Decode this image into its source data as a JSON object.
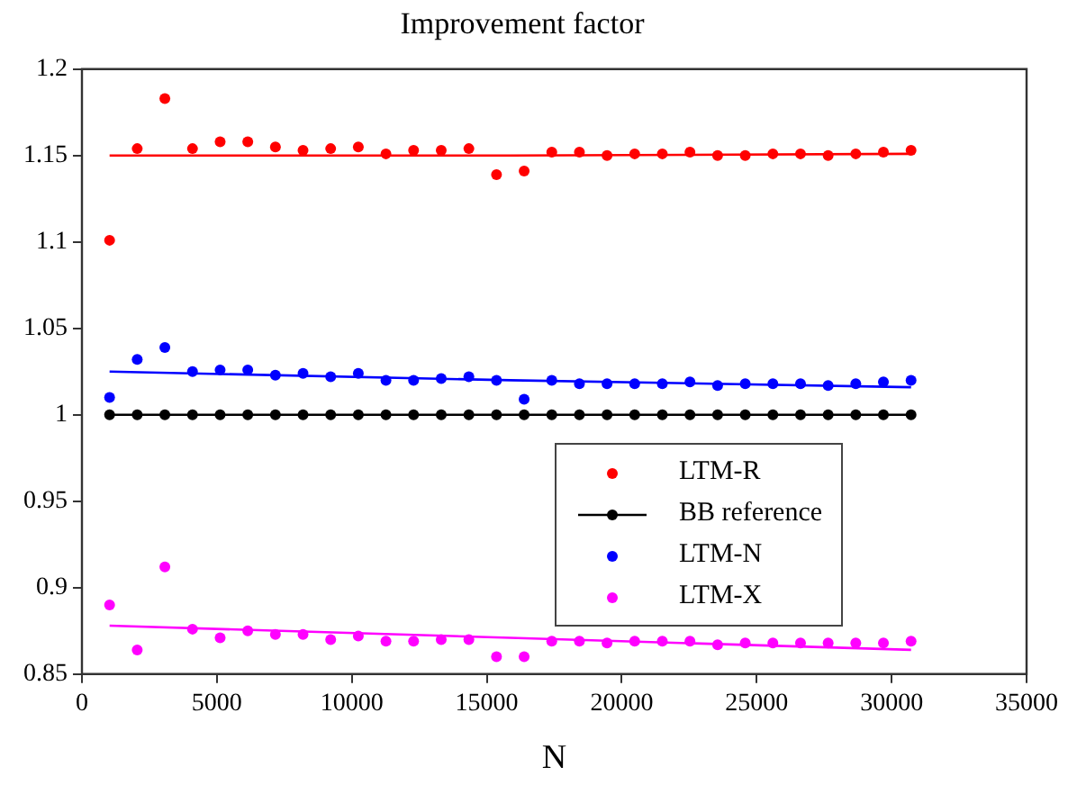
{
  "chart_data": {
    "type": "scatter",
    "title": "Improvement factor",
    "xlabel": "N",
    "x": [
      1024,
      2048,
      3072,
      4096,
      5120,
      6144,
      7168,
      8192,
      9216,
      10240,
      11264,
      12288,
      13312,
      14336,
      15360,
      16384,
      17408,
      18432,
      19456,
      20480,
      21504,
      22528,
      23552,
      24576,
      25600,
      26624,
      27648,
      28672,
      29696,
      30720
    ],
    "series": [
      {
        "name": "LTM-R",
        "type": "scatter",
        "color": "#ff0000",
        "values": [
          1.101,
          1.154,
          1.183,
          1.154,
          1.158,
          1.158,
          1.155,
          1.153,
          1.154,
          1.155,
          1.151,
          1.153,
          1.153,
          1.154,
          1.139,
          1.141,
          1.152,
          1.152,
          1.15,
          1.151,
          1.151,
          1.152,
          1.15,
          1.15,
          1.151,
          1.151,
          1.15,
          1.151,
          1.152,
          1.153
        ]
      },
      {
        "name": "BB reference",
        "type": "line",
        "marker": "circle",
        "color": "#000000",
        "values": [
          1,
          1,
          1,
          1,
          1,
          1,
          1,
          1,
          1,
          1,
          1,
          1,
          1,
          1,
          1,
          1,
          1,
          1,
          1,
          1,
          1,
          1,
          1,
          1,
          1,
          1,
          1,
          1,
          1,
          1
        ]
      },
      {
        "name": "LTM-N",
        "type": "scatter",
        "color": "#0000ff",
        "values": [
          1.01,
          1.032,
          1.039,
          1.025,
          1.026,
          1.026,
          1.023,
          1.024,
          1.022,
          1.024,
          1.02,
          1.02,
          1.021,
          1.022,
          1.02,
          1.009,
          1.02,
          1.018,
          1.018,
          1.018,
          1.018,
          1.019,
          1.017,
          1.018,
          1.018,
          1.018,
          1.017,
          1.018,
          1.019,
          1.02
        ]
      },
      {
        "name": "LTM-X",
        "type": "scatter",
        "color": "#ff00ff",
        "values": [
          0.89,
          0.864,
          0.912,
          0.876,
          0.871,
          0.875,
          0.873,
          0.873,
          0.87,
          0.872,
          0.869,
          0.869,
          0.87,
          0.87,
          0.86,
          0.86,
          0.869,
          0.869,
          0.868,
          0.869,
          0.869,
          0.869,
          0.867,
          0.868,
          0.868,
          0.868,
          0.868,
          0.868,
          0.868,
          0.869
        ]
      },
      {
        "type": "line",
        "marker": "none",
        "color": "#ff0000",
        "x": [
          1024,
          15872,
          30720
        ],
        "values": [
          1.15,
          1.15,
          1.151
        ]
      },
      {
        "type": "line",
        "marker": "none",
        "color": "#0000ff",
        "x": [
          1024,
          15872,
          30720
        ],
        "values": [
          1.025,
          1.02,
          1.016
        ]
      },
      {
        "type": "line",
        "marker": "none",
        "color": "#ff00ff",
        "x": [
          1024,
          15872,
          30720
        ],
        "values": [
          0.878,
          0.871,
          0.864
        ]
      }
    ],
    "xlim": [
      0,
      35000
    ],
    "xticks": [
      0,
      5000,
      10000,
      15000,
      20000,
      25000,
      30000,
      35000
    ],
    "ylim": [
      0.85,
      1.2
    ],
    "yticks": [
      0.85,
      0.9,
      0.95,
      1,
      1.05,
      1.1,
      1.15,
      1.2
    ],
    "grid": false,
    "legend": "bottom right",
    "line_style": "solid"
  }
}
